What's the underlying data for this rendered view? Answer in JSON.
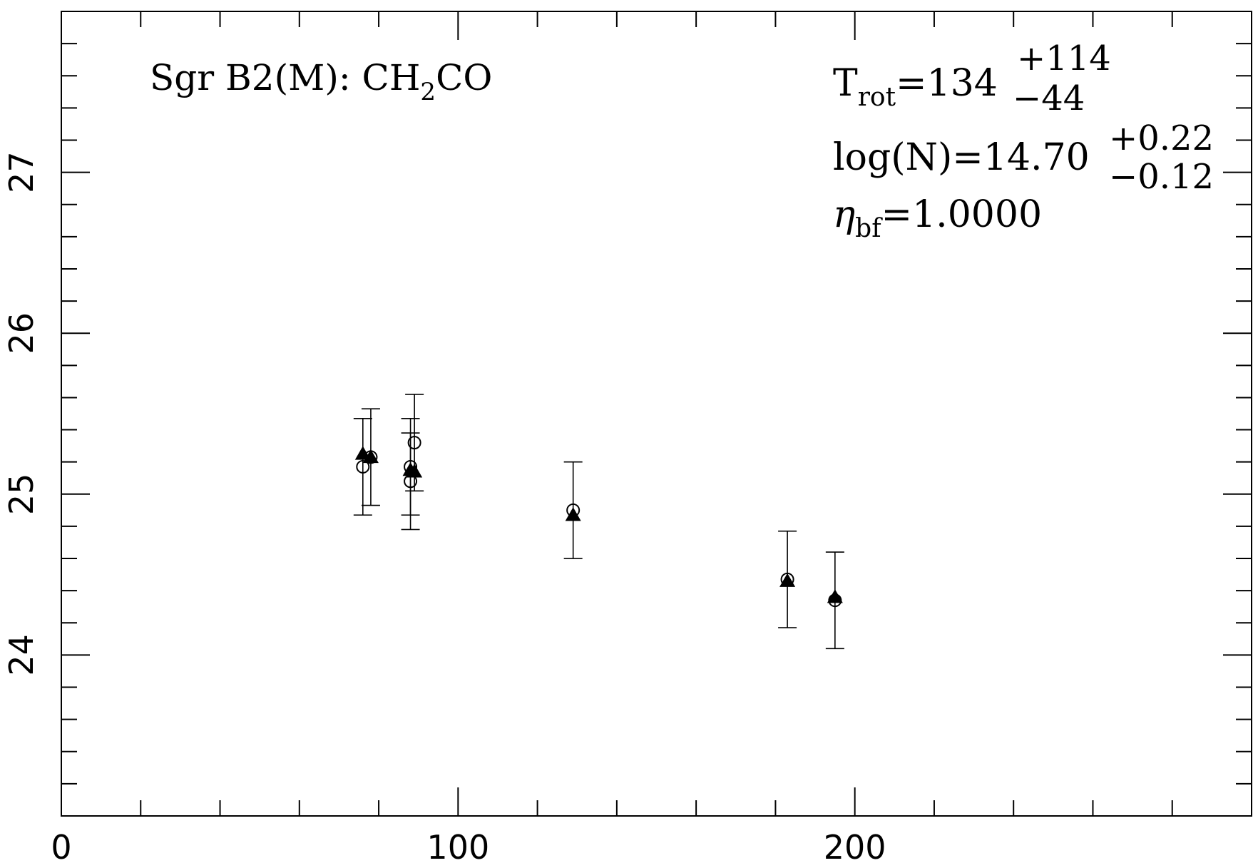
{
  "chart_data": {
    "type": "scatter",
    "title": "",
    "xlabel": "",
    "ylabel": "",
    "xlim": [
      0,
      300
    ],
    "ylim": [
      23,
      28
    ],
    "x_ticks": [
      0,
      100,
      200
    ],
    "y_ticks": [
      24,
      25,
      26,
      27
    ],
    "grid": false,
    "annotations": {
      "source_label": "Sgr B2(M): CH",
      "source_sub": "2",
      "source_tail": "CO",
      "trot_main": "T",
      "trot_sub": "rot",
      "trot_value": "=134",
      "trot_plus": "+114",
      "trot_minus": "−44",
      "logn_value": "log(N)=14.70",
      "logn_plus": "+0.22",
      "logn_minus": "−0.12",
      "eta_main": "η",
      "eta_sub": "bf",
      "eta_value": "=1.0000"
    },
    "series": [
      {
        "marker": "open-circle",
        "points": [
          {
            "x": 76,
            "y": 25.17,
            "err": 0.3
          },
          {
            "x": 78,
            "y": 25.23,
            "err": 0.3
          },
          {
            "x": 88,
            "y": 25.17,
            "err": 0.3
          },
          {
            "x": 88,
            "y": 25.08,
            "err": 0.3
          },
          {
            "x": 89,
            "y": 25.32,
            "err": 0.3
          },
          {
            "x": 129,
            "y": 24.9,
            "err": 0.3
          },
          {
            "x": 183,
            "y": 24.47,
            "err": 0.3
          },
          {
            "x": 195,
            "y": 24.34,
            "err": 0.3
          }
        ]
      },
      {
        "marker": "filled-triangle",
        "points": [
          {
            "x": 76,
            "y": 25.25
          },
          {
            "x": 78,
            "y": 25.23
          },
          {
            "x": 88,
            "y": 25.15
          },
          {
            "x": 89,
            "y": 25.14
          },
          {
            "x": 129,
            "y": 24.87
          },
          {
            "x": 183,
            "y": 24.46
          },
          {
            "x": 195,
            "y": 24.36
          }
        ]
      }
    ]
  }
}
